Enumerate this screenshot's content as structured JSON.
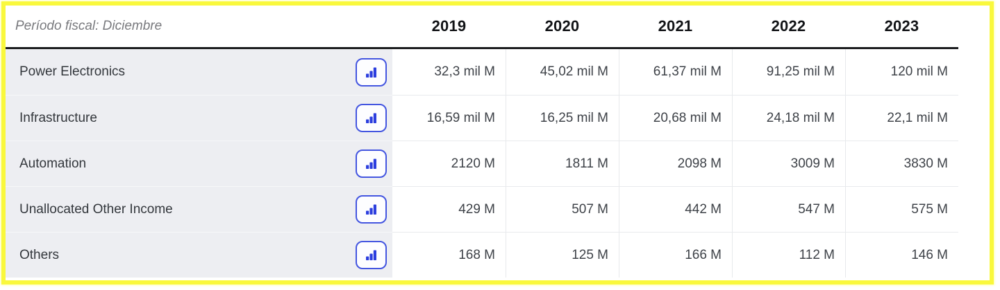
{
  "header": {
    "period_label": "Período fiscal: Diciembre",
    "years": [
      "2019",
      "2020",
      "2021",
      "2022",
      "2023"
    ]
  },
  "rows": [
    {
      "label": "Power Electronics",
      "values": [
        "32,3 mil M",
        "45,02 mil M",
        "61,37 mil M",
        "91,25 mil M",
        "120 mil M"
      ]
    },
    {
      "label": "Infrastructure",
      "values": [
        "16,59 mil M",
        "16,25 mil M",
        "20,68 mil M",
        "24,18 mil M",
        "22,1 mil M"
      ]
    },
    {
      "label": "Automation",
      "values": [
        "2120 M",
        "1811 M",
        "2098 M",
        "3009 M",
        "3830 M"
      ]
    },
    {
      "label": "Unallocated Other Income",
      "values": [
        "429 M",
        "507 M",
        "442 M",
        "547 M",
        "575 M"
      ]
    },
    {
      "label": "Others",
      "values": [
        "168 M",
        "125 M",
        "166 M",
        "112 M",
        "146 M"
      ]
    }
  ],
  "icons": {
    "row_action": "bar-chart-icon"
  },
  "colors": {
    "highlight_border": "#f9f83c",
    "label_column_bg": "#edeef2",
    "button_border": "#4355e0",
    "button_icon": "#2c3ede",
    "header_rule": "#1c1d1f"
  }
}
